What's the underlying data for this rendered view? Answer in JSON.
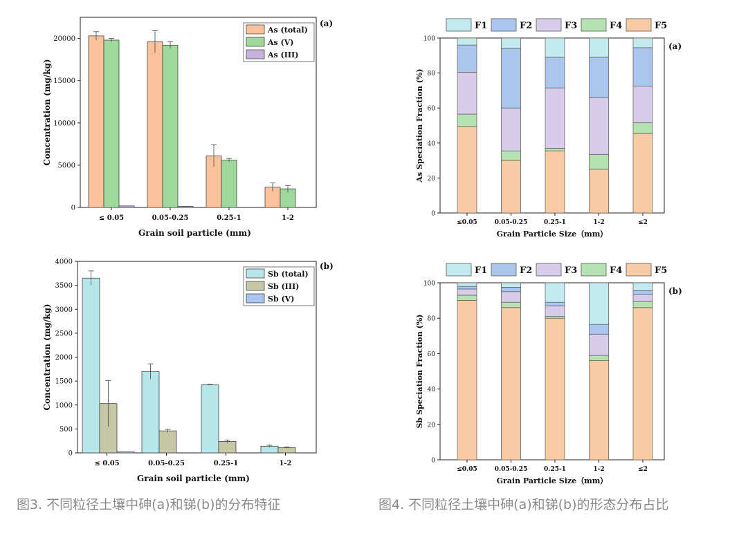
{
  "captions": {
    "fig3": "图3. 不同粒径土壤中砷(a)和锑(b)的分布特征",
    "fig4": "图4. 不同粒径土壤中砷(a)和锑(b)的形态分布占比"
  },
  "colors": {
    "orange": "#f9c29a",
    "green": "#9ed89a",
    "purple": "#c5b5de",
    "cyan": "#b6e5ea",
    "olive": "#c6c7a7",
    "blue": "#a8c4ef",
    "F1": "#c3ebef",
    "F2": "#aac6ef",
    "F3": "#d7cdea",
    "F4": "#b4e2b0",
    "F5": "#f9cba5"
  },
  "chart_data": [
    {
      "type": "bar",
      "panel_label": "(a)",
      "xlabel": "Grain soil particle (mm)",
      "ylabel": "Concentration (mg/kg)",
      "categories": [
        "≤ 0.05",
        "0.05-0.25",
        "0.25-1",
        "1-2"
      ],
      "ylim": [
        0,
        22500
      ],
      "yticks": [
        0,
        5000,
        10000,
        15000,
        20000
      ],
      "legend_position": "top-right",
      "series": [
        {
          "name": "As (total)",
          "color": "#f9c29a",
          "values": [
            20300,
            19600,
            6100,
            2400
          ],
          "errors": [
            500,
            1300,
            1300,
            500
          ]
        },
        {
          "name": "As (V)",
          "color": "#9ed89a",
          "values": [
            19800,
            19200,
            5600,
            2200
          ],
          "errors": [
            200,
            400,
            200,
            400
          ]
        },
        {
          "name": "As (III)",
          "color": "#c5b5de",
          "values": [
            180,
            80,
            0,
            0
          ],
          "errors": [
            0,
            0,
            0,
            0
          ]
        }
      ]
    },
    {
      "type": "bar",
      "panel_label": "(b)",
      "xlabel": "Grain soil particle (mm)",
      "ylabel": "Concentration (mg/kg)",
      "categories": [
        "≤ 0.05",
        "0.05-0.25",
        "0.25-1",
        "1-2"
      ],
      "ylim": [
        0,
        4000
      ],
      "yticks": [
        0,
        500,
        1000,
        1500,
        2000,
        2500,
        3000,
        3500,
        4000
      ],
      "legend_position": "top-right",
      "series": [
        {
          "name": "Sb (total)",
          "color": "#b6e5ea",
          "values": [
            3650,
            1700,
            1420,
            140
          ],
          "errors": [
            150,
            160,
            10,
            20
          ]
        },
        {
          "name": "Sb (III)",
          "color": "#c6c7a7",
          "values": [
            1030,
            460,
            240,
            110
          ],
          "errors": [
            480,
            30,
            30,
            15
          ]
        },
        {
          "name": "Sb (V)",
          "color": "#a8c4ef",
          "values": [
            20,
            0,
            0,
            0
          ],
          "errors": [
            0,
            0,
            0,
            0
          ]
        }
      ]
    },
    {
      "type": "bar",
      "stacked": true,
      "panel_label": "(a)",
      "xlabel": "Grain Particle Size（mm）",
      "ylabel": "As Speciation Fraction (%)",
      "categories": [
        "≤0.05",
        "0.05-0.25",
        "0.25-1",
        "1-2",
        "≤2"
      ],
      "ylim": [
        0,
        100
      ],
      "yticks": [
        0,
        20,
        40,
        60,
        80,
        100
      ],
      "legend_position": "top",
      "series": [
        {
          "name": "F5",
          "color": "#f9cba5",
          "values": [
            49.5,
            30,
            35.5,
            25,
            45.5
          ]
        },
        {
          "name": "F4",
          "color": "#b4e2b0",
          "values": [
            7,
            5.5,
            1.5,
            8.5,
            6
          ]
        },
        {
          "name": "F3",
          "color": "#d7cdea",
          "values": [
            24,
            24.5,
            34.5,
            32.5,
            21
          ]
        },
        {
          "name": "F2",
          "color": "#aac6ef",
          "values": [
            15.5,
            34,
            17.5,
            23,
            22
          ]
        },
        {
          "name": "F1",
          "color": "#c3ebef",
          "values": [
            4,
            6,
            11,
            11,
            5.5
          ]
        }
      ]
    },
    {
      "type": "bar",
      "stacked": true,
      "panel_label": "(b)",
      "xlabel": "Grain Particle Size（mm）",
      "ylabel": "Sb Speciation Fraction (%)",
      "categories": [
        "≤0.05",
        "0.05-0.25",
        "0.25-1",
        "1-2",
        "≤2"
      ],
      "ylim": [
        0,
        100
      ],
      "yticks": [
        0,
        20,
        40,
        60,
        80,
        100
      ],
      "legend_position": "top",
      "series": [
        {
          "name": "F5",
          "color": "#f9cba5",
          "values": [
            90,
            86,
            80,
            56,
            86
          ]
        },
        {
          "name": "F4",
          "color": "#b4e2b0",
          "values": [
            3,
            3,
            1,
            3,
            3.5
          ]
        },
        {
          "name": "F3",
          "color": "#d7cdea",
          "values": [
            3.5,
            6,
            6,
            12,
            4
          ]
        },
        {
          "name": "F2",
          "color": "#aac6ef",
          "values": [
            1.5,
            2.5,
            2,
            5.5,
            2
          ]
        },
        {
          "name": "F1",
          "color": "#c3ebef",
          "values": [
            2,
            2.5,
            11,
            23.5,
            4.5
          ]
        }
      ]
    }
  ]
}
